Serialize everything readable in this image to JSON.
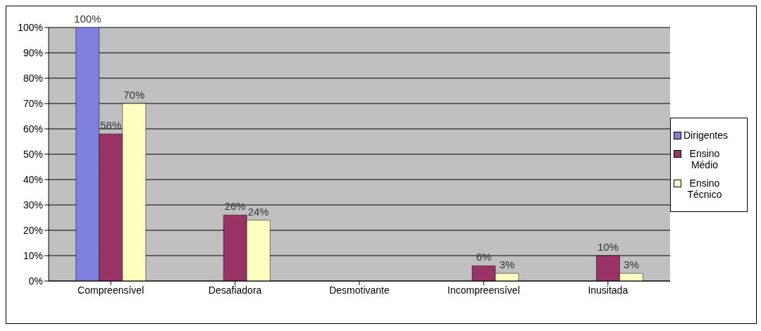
{
  "chart_data": {
    "type": "bar",
    "categories": [
      "Compreensível",
      "Desafiadora",
      "Desmotivante",
      "Incompreensível",
      "Inusitada"
    ],
    "series": [
      {
        "name": "Dirigentes",
        "color": "#7f7fe0",
        "values": [
          100,
          null,
          null,
          null,
          null
        ],
        "value_labels": [
          "100%",
          null,
          null,
          null,
          null
        ]
      },
      {
        "name": "Ensino Médio",
        "color": "#993366",
        "values": [
          58,
          26,
          null,
          6,
          10
        ],
        "value_labels": [
          "58%",
          "26%",
          null,
          "6%",
          "10%"
        ]
      },
      {
        "name": "Ensino Técnico",
        "color": "#ffffc0",
        "values": [
          70,
          24,
          null,
          3,
          3
        ],
        "value_labels": [
          "70%",
          "24%",
          null,
          "3%",
          "3%"
        ]
      }
    ],
    "ylim": [
      0,
      100
    ],
    "yticks": [
      {
        "value": 0,
        "label": "0%"
      },
      {
        "value": 10,
        "label": "10%"
      },
      {
        "value": 20,
        "label": "20%"
      },
      {
        "value": 30,
        "label": "30%"
      },
      {
        "value": 40,
        "label": "40%"
      },
      {
        "value": 50,
        "label": "50%"
      },
      {
        "value": 60,
        "label": "60%"
      },
      {
        "value": 70,
        "label": "70%"
      },
      {
        "value": 80,
        "label": "80%"
      },
      {
        "value": 90,
        "label": "90%"
      },
      {
        "value": 100,
        "label": "100%"
      }
    ],
    "grid": "y",
    "legend": "right"
  }
}
